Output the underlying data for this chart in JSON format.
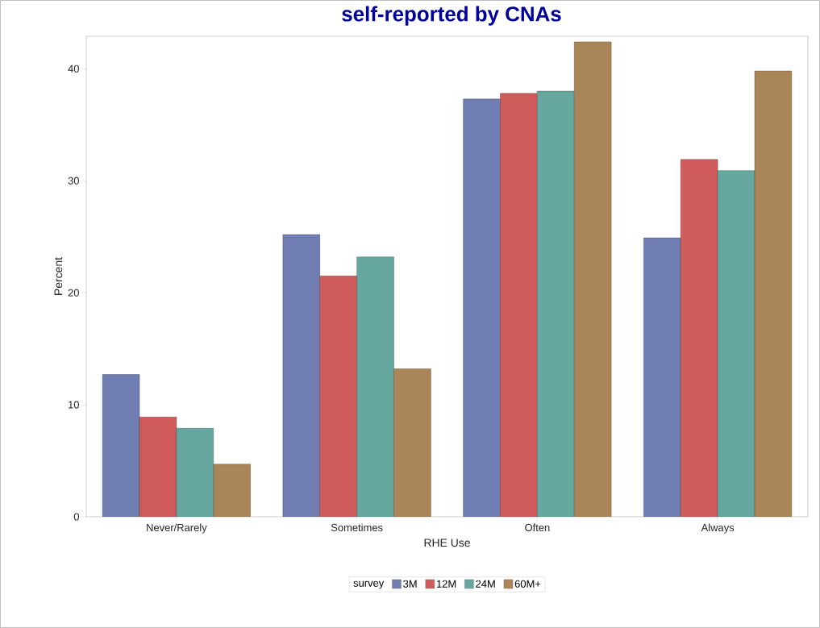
{
  "chart_data": {
    "type": "bar",
    "title": "self-reported by CNAs",
    "xlabel": "RHE Use",
    "ylabel": "Percent",
    "legend_title": "survey",
    "categories": [
      "Never/Rarely",
      "Sometimes",
      "Often",
      "Always"
    ],
    "series": [
      {
        "name": "3M",
        "color": "#6f7db2",
        "values": [
          12.7,
          25.2,
          37.3,
          24.9
        ]
      },
      {
        "name": "12M",
        "color": "#d05b5b",
        "values": [
          8.9,
          21.5,
          37.8,
          31.9
        ]
      },
      {
        "name": "24M",
        "color": "#66a8a0",
        "values": [
          7.9,
          23.2,
          38.0,
          30.9
        ]
      },
      {
        "name": "60M+",
        "color": "#a98558",
        "values": [
          4.7,
          13.2,
          42.4,
          39.8
        ]
      }
    ],
    "ylim": [
      0,
      42.9
    ],
    "yticks": [
      0,
      10,
      20,
      30,
      40
    ],
    "grid": false,
    "legend": "bottom"
  }
}
